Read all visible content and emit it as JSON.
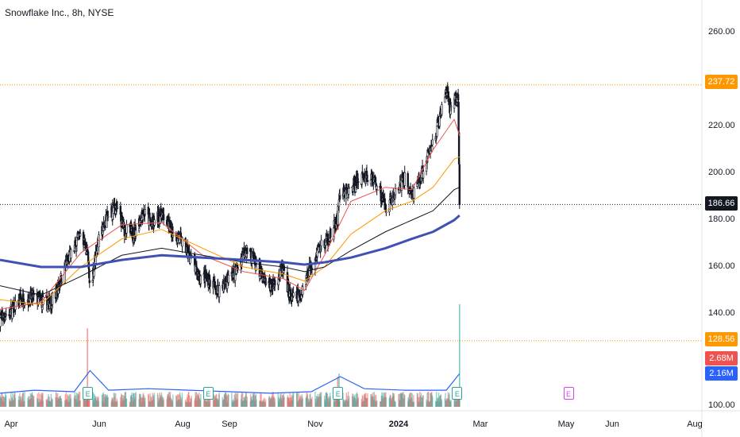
{
  "header": {
    "title": "Snowflake Inc., 8h, NYSE"
  },
  "price_tags": [
    {
      "label": "237.72",
      "value": 237.72,
      "color": "#ff9800",
      "text_color": "#ffffff"
    },
    {
      "label": "186.66",
      "value": 186.66,
      "color": "#131722",
      "text_color": "#ffffff"
    },
    {
      "label": "128.56",
      "value": 128.56,
      "color": "#ff9800",
      "text_color": "#ffffff"
    }
  ],
  "volume_tags": [
    {
      "label": "2.68M",
      "color": "#ef5350"
    },
    {
      "label": "2.16M",
      "color": "#2962ff"
    }
  ],
  "earnings_marker": {
    "label": "E"
  },
  "chart_data": {
    "type": "candlestick",
    "title": "Snowflake Inc., 8h, NYSE",
    "y_ticks": [
      100,
      140,
      160,
      180,
      200,
      220,
      260
    ],
    "ylim": [
      100,
      266
    ],
    "x_ticks": [
      "Apr",
      "Jun",
      "Aug",
      "Sep",
      "Nov",
      "2024",
      "Mar",
      "May",
      "Jun",
      "Aug"
    ],
    "x_tick_bold": "2024",
    "price_points": [
      {
        "d": "2023-03-20",
        "c": 138
      },
      {
        "d": "2023-03-28",
        "c": 141
      },
      {
        "d": "2023-04-05",
        "c": 146
      },
      {
        "d": "2023-04-15",
        "c": 147
      },
      {
        "d": "2023-04-25",
        "c": 144
      },
      {
        "d": "2023-05-01",
        "c": 148
      },
      {
        "d": "2023-05-08",
        "c": 160
      },
      {
        "d": "2023-05-15",
        "c": 168
      },
      {
        "d": "2023-05-20",
        "c": 175
      },
      {
        "d": "2023-05-25",
        "c": 166
      },
      {
        "d": "2023-05-27",
        "c": 150
      },
      {
        "d": "2023-06-01",
        "c": 168
      },
      {
        "d": "2023-06-08",
        "c": 180
      },
      {
        "d": "2023-06-15",
        "c": 186
      },
      {
        "d": "2023-06-22",
        "c": 176
      },
      {
        "d": "2023-06-29",
        "c": 174
      },
      {
        "d": "2023-07-06",
        "c": 184
      },
      {
        "d": "2023-07-13",
        "c": 178
      },
      {
        "d": "2023-07-20",
        "c": 183
      },
      {
        "d": "2023-07-27",
        "c": 176
      },
      {
        "d": "2023-08-03",
        "c": 172
      },
      {
        "d": "2023-08-10",
        "c": 165
      },
      {
        "d": "2023-08-17",
        "c": 156
      },
      {
        "d": "2023-08-24",
        "c": 155
      },
      {
        "d": "2023-08-31",
        "c": 150
      },
      {
        "d": "2023-09-07",
        "c": 154
      },
      {
        "d": "2023-09-14",
        "c": 158
      },
      {
        "d": "2023-09-21",
        "c": 168
      },
      {
        "d": "2023-09-28",
        "c": 163
      },
      {
        "d": "2023-10-05",
        "c": 154
      },
      {
        "d": "2023-10-12",
        "c": 152
      },
      {
        "d": "2023-10-19",
        "c": 159
      },
      {
        "d": "2023-10-26",
        "c": 146
      },
      {
        "d": "2023-11-02",
        "c": 148
      },
      {
        "d": "2023-11-09",
        "c": 160
      },
      {
        "d": "2023-11-16",
        "c": 168
      },
      {
        "d": "2023-11-23",
        "c": 172
      },
      {
        "d": "2023-11-30",
        "c": 180
      },
      {
        "d": "2023-12-01",
        "c": 190
      },
      {
        "d": "2023-12-08",
        "c": 192
      },
      {
        "d": "2023-12-15",
        "c": 197
      },
      {
        "d": "2023-12-22",
        "c": 199
      },
      {
        "d": "2023-12-29",
        "c": 196
      },
      {
        "d": "2024-01-05",
        "c": 186
      },
      {
        "d": "2024-01-12",
        "c": 190
      },
      {
        "d": "2024-01-19",
        "c": 198
      },
      {
        "d": "2024-01-26",
        "c": 190
      },
      {
        "d": "2024-02-02",
        "c": 200
      },
      {
        "d": "2024-02-09",
        "c": 212
      },
      {
        "d": "2024-02-16",
        "c": 225
      },
      {
        "d": "2024-02-20",
        "c": 236
      },
      {
        "d": "2024-02-23",
        "c": 226
      },
      {
        "d": "2024-02-26",
        "c": 233
      },
      {
        "d": "2024-02-29",
        "c": 231
      },
      {
        "d": "2024-03-01",
        "c": 186.66
      }
    ],
    "series": [
      {
        "name": "ma_fast",
        "color": "#ef5350",
        "width": 1,
        "points": [
          [
            "2023-03-20",
            142
          ],
          [
            "2023-04-20",
            145
          ],
          [
            "2023-05-20",
            166
          ],
          [
            "2023-06-20",
            178
          ],
          [
            "2023-07-20",
            179
          ],
          [
            "2023-08-20",
            165
          ],
          [
            "2023-09-20",
            158
          ],
          [
            "2023-10-20",
            155
          ],
          [
            "2023-11-05",
            150
          ],
          [
            "2023-11-20",
            165
          ],
          [
            "2023-12-10",
            188
          ],
          [
            "2024-01-05",
            194
          ],
          [
            "2024-01-25",
            193
          ],
          [
            "2024-02-10",
            210
          ],
          [
            "2024-02-26",
            223
          ],
          [
            "2024-03-01",
            216
          ]
        ]
      },
      {
        "name": "ma_mid",
        "color": "#ff9800",
        "width": 1,
        "points": [
          [
            "2023-03-20",
            146
          ],
          [
            "2023-04-20",
            144
          ],
          [
            "2023-05-20",
            160
          ],
          [
            "2023-06-20",
            172
          ],
          [
            "2023-07-20",
            176
          ],
          [
            "2023-08-20",
            168
          ],
          [
            "2023-09-20",
            160
          ],
          [
            "2023-10-20",
            157
          ],
          [
            "2023-11-05",
            154
          ],
          [
            "2023-11-20",
            160
          ],
          [
            "2023-12-10",
            174
          ],
          [
            "2024-01-05",
            184
          ],
          [
            "2024-01-25",
            188
          ],
          [
            "2024-02-10",
            194
          ],
          [
            "2024-02-26",
            206
          ],
          [
            "2024-03-01",
            207
          ]
        ]
      },
      {
        "name": "ma_slow",
        "color": "#131722",
        "width": 1,
        "points": [
          [
            "2023-03-20",
            152
          ],
          [
            "2023-04-20",
            148
          ],
          [
            "2023-05-20",
            156
          ],
          [
            "2023-06-20",
            165
          ],
          [
            "2023-07-20",
            168
          ],
          [
            "2023-08-20",
            165
          ],
          [
            "2023-09-20",
            162
          ],
          [
            "2023-10-20",
            160
          ],
          [
            "2023-11-05",
            158
          ],
          [
            "2023-11-20",
            160
          ],
          [
            "2023-12-10",
            167
          ],
          [
            "2024-01-05",
            175
          ],
          [
            "2024-01-25",
            180
          ],
          [
            "2024-02-10",
            184
          ],
          [
            "2024-02-26",
            193
          ],
          [
            "2024-03-01",
            194
          ]
        ]
      },
      {
        "name": "ma_long",
        "color": "#3f51b5",
        "width": 3,
        "points": [
          [
            "2023-03-20",
            163
          ],
          [
            "2023-04-20",
            160
          ],
          [
            "2023-05-20",
            160
          ],
          [
            "2023-06-20",
            163
          ],
          [
            "2023-07-20",
            165
          ],
          [
            "2023-08-20",
            164
          ],
          [
            "2023-09-20",
            163
          ],
          [
            "2023-10-20",
            162
          ],
          [
            "2023-11-05",
            161
          ],
          [
            "2023-11-20",
            162
          ],
          [
            "2023-12-10",
            164
          ],
          [
            "2024-01-05",
            168
          ],
          [
            "2024-01-25",
            172
          ],
          [
            "2024-02-10",
            175
          ],
          [
            "2024-02-26",
            180
          ],
          [
            "2024-03-01",
            182
          ]
        ]
      }
    ],
    "horizontal_lines": [
      {
        "value": 237.72,
        "color": "#ff9800",
        "style": "dotted"
      },
      {
        "value": 186.66,
        "color": "#131722",
        "style": "dotted"
      },
      {
        "value": 128.56,
        "color": "#ff9800",
        "style": "dotted"
      }
    ],
    "volume_spikes": [
      {
        "d": "2023-05-25",
        "v": 2.6,
        "up": false
      },
      {
        "d": "2023-12-01",
        "v": 1.1,
        "up": true
      },
      {
        "d": "2023-11-30",
        "v": 1.0,
        "up": false
      },
      {
        "d": "2024-03-01",
        "v": 3.4,
        "up": true
      }
    ],
    "volume_ma_points": [
      [
        "2023-03-20",
        0.45
      ],
      [
        "2023-04-15",
        0.55
      ],
      [
        "2023-05-15",
        0.5
      ],
      [
        "2023-05-27",
        1.2
      ],
      [
        "2023-06-10",
        0.55
      ],
      [
        "2023-07-10",
        0.6
      ],
      [
        "2023-08-10",
        0.55
      ],
      [
        "2023-09-10",
        0.5
      ],
      [
        "2023-10-10",
        0.45
      ],
      [
        "2023-11-10",
        0.5
      ],
      [
        "2023-12-02",
        1.0
      ],
      [
        "2023-12-20",
        0.6
      ],
      [
        "2024-01-20",
        0.55
      ],
      [
        "2024-02-20",
        0.55
      ],
      [
        "2024-03-01",
        1.1
      ]
    ],
    "earnings_dates": [
      "2023-05-25",
      "2023-08-24",
      "2023-11-30",
      "2024-02-28",
      "2024-05-22"
    ]
  }
}
